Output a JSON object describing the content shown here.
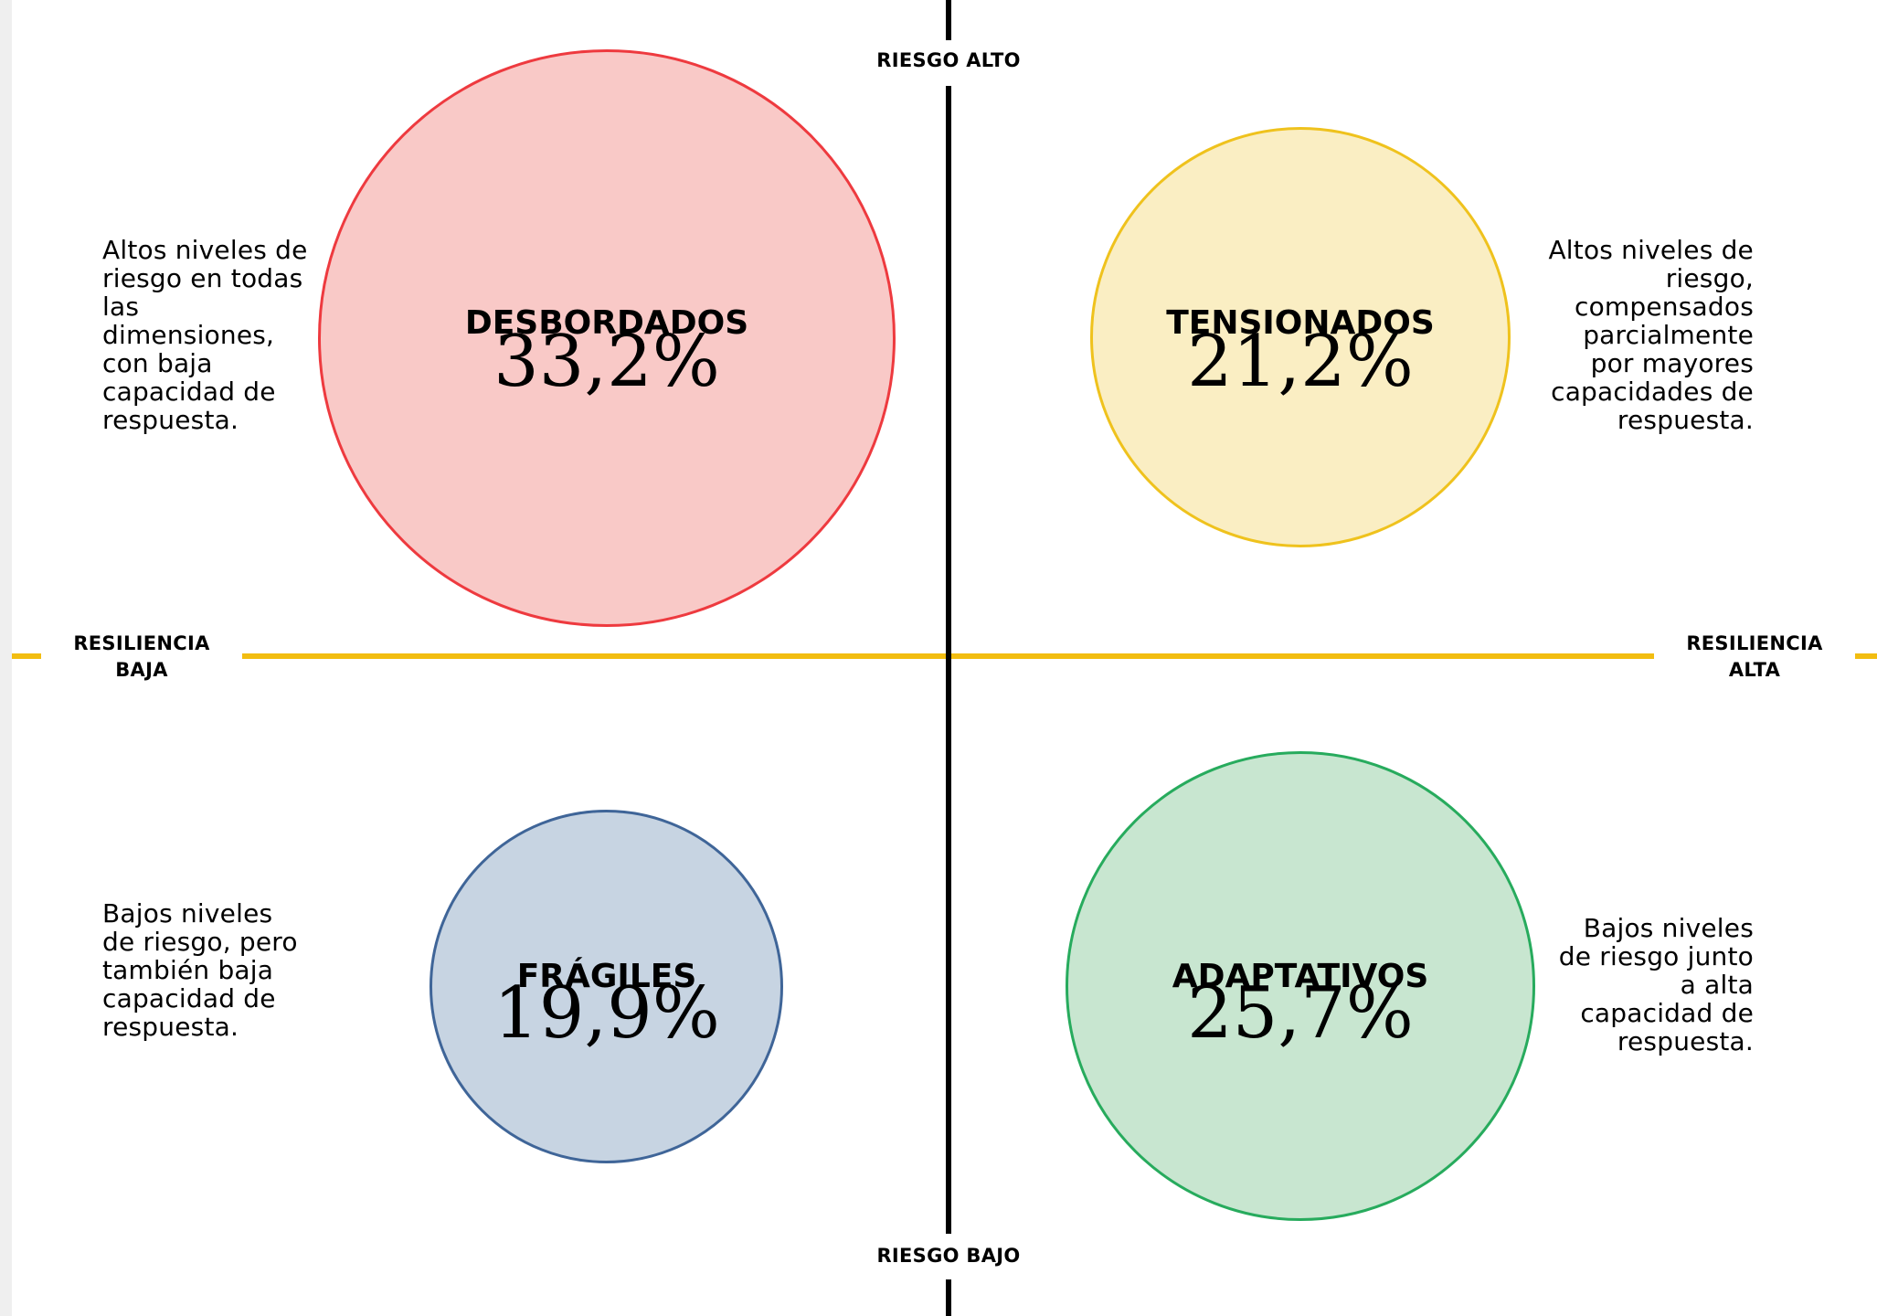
{
  "axes": {
    "top": "RIESGO ALTO",
    "bottom": "RIESGO BAJO",
    "left_line1": "RESILIENCIA",
    "left_line2": "BAJA",
    "right_line1": "RESILIENCIA",
    "right_line2": "ALTA"
  },
  "colors": {
    "vertical_axis": "#000000",
    "horizontal_axis": "#f2bd11"
  },
  "quadrants": {
    "top_left": {
      "name": "DESBORDADOS",
      "value": "33,2%",
      "fill": "#f9c9c7",
      "stroke": "#ee3a3f",
      "description": "Altos niveles de riesgo en todas las dimensiones, con baja capacidad de respuesta."
    },
    "top_right": {
      "name": "TENSIONADOS",
      "value": "21,2%",
      "fill": "#faeec3",
      "stroke": "#efc21d",
      "description": "Altos niveles de riesgo, compensados parcialmente por mayores capacidades de respuesta."
    },
    "bottom_left": {
      "name": "FRÁGILES",
      "value": "19,9%",
      "fill": "#c7d4e2",
      "stroke": "#3f6598",
      "description": "Bajos niveles de riesgo, pero también baja capacidad de respuesta."
    },
    "bottom_right": {
      "name": "ADAPTATIVOS",
      "value": "25,7%",
      "fill": "#c8e6d0",
      "stroke": "#27ab5d",
      "description": "Bajos niveles de riesgo junto a alta capacidad de respuesta."
    }
  }
}
